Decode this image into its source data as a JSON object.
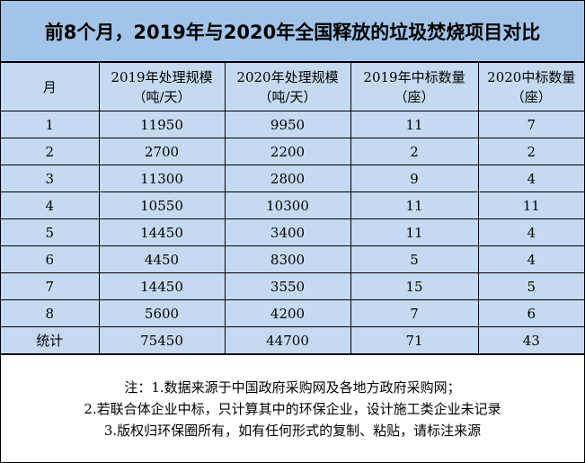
{
  "title": "前8个月，2019年与2020年全国释放的垃圾焚烧项目对比",
  "headers": [
    {
      "line1": "月",
      "line2": ""
    },
    {
      "line1": "2019年处理规模",
      "line2": "（吨/天）"
    },
    {
      "line1": "2020年处理规模",
      "line2": "（吨/天）"
    },
    {
      "line1": "2019年中标数量",
      "line2": "（座）"
    },
    {
      "line1": "2020中标数量",
      "line2": "（座）"
    }
  ],
  "rows": [
    [
      "1",
      "11950",
      "9950",
      "11",
      "7"
    ],
    [
      "2",
      "2700",
      "2200",
      "2",
      "2"
    ],
    [
      "3",
      "11300",
      "2800",
      "9",
      "4"
    ],
    [
      "4",
      "10550",
      "10300",
      "11",
      "11"
    ],
    [
      "5",
      "14450",
      "3400",
      "11",
      "4"
    ],
    [
      "6",
      "4450",
      "8300",
      "5",
      "4"
    ],
    [
      "7",
      "14450",
      "3550",
      "15",
      "5"
    ],
    [
      "8",
      "5600",
      "4200",
      "7",
      "6"
    ],
    [
      "统计",
      "75450",
      "44700",
      "71",
      "43"
    ]
  ],
  "notes": [
    "注：1.数据来源于中国政府采购网及各地方政府采购网；",
    "2.若联合体企业中标，只计算其中的环保企业，设计施工类企业未记录",
    "3.版权归环保圈所有，如有任何形式的复制、粘贴，请标注来源"
  ],
  "colors": {
    "title_bg": "#a2c4e8",
    "cell_bg": "#c5daf1"
  }
}
